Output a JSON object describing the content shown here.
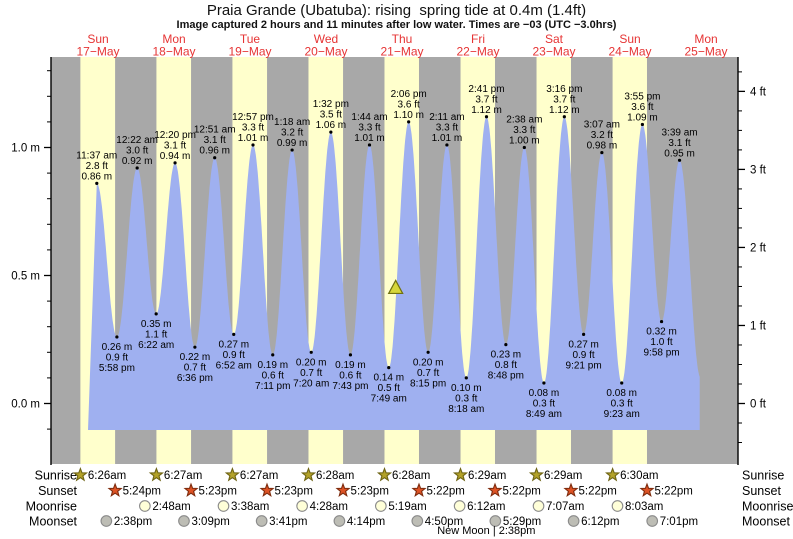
{
  "title": "Praia Grande (Ubatuba): rising  spring tide at 0.4m (1.4ft)",
  "subtitle": "Image captured 2 hours and 11 minutes after low water. Times are −03 (UTC −3.0hrs)",
  "days": [
    {
      "name": "Sun",
      "date": "17−May"
    },
    {
      "name": "Mon",
      "date": "18−May"
    },
    {
      "name": "Tue",
      "date": "19−May"
    },
    {
      "name": "Wed",
      "date": "20−May"
    },
    {
      "name": "Thu",
      "date": "21−May"
    },
    {
      "name": "Fri",
      "date": "22−May"
    },
    {
      "name": "Sat",
      "date": "23−May"
    },
    {
      "name": "Sun",
      "date": "24−May"
    },
    {
      "name": "Mon",
      "date": "25−May"
    }
  ],
  "chart_data": {
    "type": "area",
    "title": "Praia Grande (Ubatuba): rising  spring tide at 0.4m (1.4ft)",
    "ylabel_left_unit": "m",
    "ylabel_right_unit": "ft",
    "y_axis_left_ticks": [
      {
        "label": "1.0 m",
        "m": 1.0
      },
      {
        "label": "0.5 m",
        "m": 0.5
      },
      {
        "label": "0.0 m",
        "m": 0.0
      }
    ],
    "y_axis_right_ticks": [
      {
        "label": "4 ft",
        "ft": 4
      },
      {
        "label": "3 ft",
        "ft": 3
      },
      {
        "label": "2 ft",
        "ft": 2
      },
      {
        "label": "1 ft",
        "ft": 1
      },
      {
        "label": "0 ft",
        "ft": 0
      }
    ],
    "tide_extremes": [
      {
        "day": 0,
        "type": "high",
        "time": "11:37 am",
        "height_m": 0.86,
        "label_ft": "2.8 ft",
        "label_m": "0.86 m"
      },
      {
        "day": 0,
        "type": "low",
        "time": "5:58 pm",
        "height_m": 0.26,
        "label_ft": "0.9 ft",
        "label_m": "0.26 m"
      },
      {
        "day": 1,
        "type": "high",
        "time": "12:22 am",
        "height_m": 0.92,
        "label_ft": "3.0 ft",
        "label_m": "0.92 m"
      },
      {
        "day": 1,
        "type": "low",
        "time": "6:22 am",
        "height_m": 0.35,
        "label_ft": "1.1 ft",
        "label_m": "0.35 m"
      },
      {
        "day": 1,
        "type": "high",
        "time": "12:20 pm",
        "height_m": 0.94,
        "label_ft": "3.1 ft",
        "label_m": "0.94 m"
      },
      {
        "day": 1,
        "type": "low",
        "time": "6:36 pm",
        "height_m": 0.22,
        "label_ft": "0.7 ft",
        "label_m": "0.22 m"
      },
      {
        "day": 2,
        "type": "high",
        "time": "12:51 am",
        "height_m": 0.96,
        "label_ft": "3.1 ft",
        "label_m": "0.96 m"
      },
      {
        "day": 2,
        "type": "low",
        "time": "6:52 am",
        "height_m": 0.27,
        "label_ft": "0.9 ft",
        "label_m": "0.27 m"
      },
      {
        "day": 2,
        "type": "high",
        "time": "12:57 pm",
        "height_m": 1.01,
        "label_ft": "3.3 ft",
        "label_m": "1.01 m"
      },
      {
        "day": 2,
        "type": "low",
        "time": "7:11 pm",
        "height_m": 0.19,
        "label_ft": "0.6 ft",
        "label_m": "0.19 m"
      },
      {
        "day": 3,
        "type": "high",
        "time": "1:18 am",
        "height_m": 0.99,
        "label_ft": "3.2 ft",
        "label_m": "0.99 m"
      },
      {
        "day": 3,
        "type": "low",
        "time": "7:20 am",
        "height_m": 0.2,
        "label_ft": "0.7 ft",
        "label_m": "0.20 m"
      },
      {
        "day": 3,
        "type": "high",
        "time": "1:32 pm",
        "height_m": 1.06,
        "label_ft": "3.5 ft",
        "label_m": "1.06 m"
      },
      {
        "day": 3,
        "type": "low",
        "time": "7:43 pm",
        "height_m": 0.19,
        "label_ft": "0.6 ft",
        "label_m": "0.19 m"
      },
      {
        "day": 4,
        "type": "high",
        "time": "1:44 am",
        "height_m": 1.01,
        "label_ft": "3.3 ft",
        "label_m": "1.01 m"
      },
      {
        "day": 4,
        "type": "low",
        "time": "7:49 am",
        "height_m": 0.14,
        "label_ft": "0.5 ft",
        "label_m": "0.14 m"
      },
      {
        "day": 4,
        "type": "high",
        "time": "2:06 pm",
        "height_m": 1.1,
        "label_ft": "3.6 ft",
        "label_m": "1.10 m"
      },
      {
        "day": 4,
        "type": "low",
        "time": "8:15 pm",
        "height_m": 0.2,
        "label_ft": "0.7 ft",
        "label_m": "0.20 m"
      },
      {
        "day": 5,
        "type": "high",
        "time": "2:11 am",
        "height_m": 1.01,
        "label_ft": "3.3 ft",
        "label_m": "1.01 m"
      },
      {
        "day": 5,
        "type": "low",
        "time": "8:18 am",
        "height_m": 0.1,
        "label_ft": "0.3 ft",
        "label_m": "0.10 m"
      },
      {
        "day": 5,
        "type": "high",
        "time": "2:41 pm",
        "height_m": 1.12,
        "label_ft": "3.7 ft",
        "label_m": "1.12 m"
      },
      {
        "day": 5,
        "type": "low",
        "time": "8:48 pm",
        "height_m": 0.23,
        "label_ft": "0.8 ft",
        "label_m": "0.23 m"
      },
      {
        "day": 6,
        "type": "high",
        "time": "2:38 am",
        "height_m": 1.0,
        "label_ft": "3.3 ft",
        "label_m": "1.00 m"
      },
      {
        "day": 6,
        "type": "low",
        "time": "8:49 am",
        "height_m": 0.08,
        "label_ft": "0.3 ft",
        "label_m": "0.08 m"
      },
      {
        "day": 6,
        "type": "high",
        "time": "3:16 pm",
        "height_m": 1.12,
        "label_ft": "3.7 ft",
        "label_m": "1.12 m"
      },
      {
        "day": 6,
        "type": "low",
        "time": "9:21 pm",
        "height_m": 0.27,
        "label_ft": "0.9 ft",
        "label_m": "0.27 m"
      },
      {
        "day": 7,
        "type": "high",
        "time": "3:07 am",
        "height_m": 0.98,
        "label_ft": "3.2 ft",
        "label_m": "0.98 m"
      },
      {
        "day": 7,
        "type": "low",
        "time": "9:23 am",
        "height_m": 0.08,
        "label_ft": "0.3 ft",
        "label_m": "0.08 m"
      },
      {
        "day": 7,
        "type": "high",
        "time": "3:55 pm",
        "height_m": 1.09,
        "label_ft": "3.6 ft",
        "label_m": "1.09 m"
      },
      {
        "day": 7,
        "type": "low",
        "time": "9:58 pm",
        "height_m": 0.32,
        "label_ft": "1.0 ft",
        "label_m": "0.32 m"
      },
      {
        "day": 8,
        "type": "high",
        "time": "3:39 am",
        "height_m": 0.95,
        "label_ft": "3.1 ft",
        "label_m": "0.95 m"
      }
    ],
    "curve_start": {
      "day": 0,
      "time": "8:50 am"
    },
    "curve_end": {
      "day": 8,
      "time": "10:18 am",
      "height_m": 0.1
    },
    "curve_cutoff": {
      "day": 8,
      "time": "10:00 am"
    },
    "current_marker": {
      "day": 4,
      "time": "10:00 am",
      "height_m": 0.4
    },
    "colors": {
      "night_band": "#a8a8a8",
      "day_band": "#ffffcc",
      "tide_fill": "#9fb0f0",
      "day_label": "#e63434",
      "marker_fill": "#d6d63a",
      "marker_stroke": "#70700f",
      "sunrise_star": "#b3a229",
      "sunrise_star_stroke": "#6e6414",
      "sunset_star": "#dd5224",
      "sunset_star_stroke": "#7e2c0e",
      "moonrise_circle": "#ffffd8",
      "moonset_circle": "#bdbdb5",
      "moon_stroke": "#8a8a8a"
    }
  },
  "astro": {
    "rows": [
      {
        "id": "sunrise",
        "label": "Sunrise",
        "icon": "sunrise-star-icon",
        "day_offset": 0,
        "times": [
          "6:26am",
          "6:27am",
          "6:27am",
          "6:28am",
          "6:28am",
          "6:29am",
          "6:29am",
          "6:30am"
        ]
      },
      {
        "id": "sunset",
        "label": "Sunset",
        "icon": "sunset-star-icon",
        "day_offset": 0,
        "times": [
          "5:24pm",
          "5:23pm",
          "5:23pm",
          "5:23pm",
          "5:22pm",
          "5:22pm",
          "5:22pm",
          "5:22pm"
        ]
      },
      {
        "id": "moonrise",
        "label": "Moonrise",
        "icon": "moonrise-circle-icon",
        "day_offset": 1,
        "times": [
          "2:48am",
          "3:38am",
          "4:28am",
          "5:19am",
          "6:12am",
          "7:07am",
          "8:03am"
        ]
      },
      {
        "id": "moonset",
        "label": "Moonset",
        "icon": "moonset-circle-icon",
        "day_offset": 0,
        "times": [
          "2:38pm",
          "3:09pm",
          "3:41pm",
          "4:14pm",
          "4:50pm",
          "5:29pm",
          "6:12pm",
          "7:01pm"
        ]
      }
    ],
    "new_moon": {
      "label": "New Moon | 2:38pm",
      "day": 5,
      "time": "2:38 pm"
    }
  }
}
